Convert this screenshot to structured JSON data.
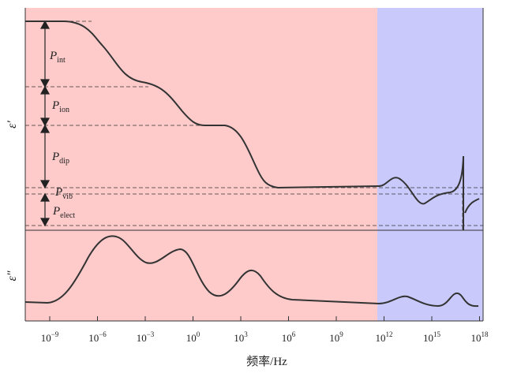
{
  "colors": {
    "low_freq_region": "#fecaca",
    "high_freq_region": "#c9c9fb",
    "curve": "#333333",
    "dashed": "#333333"
  },
  "upper_panel": {
    "y_label": "ε",
    "y_label_prime": "′",
    "polarizations": [
      {
        "main": "P",
        "sub": "int"
      },
      {
        "main": "P",
        "sub": "ion"
      },
      {
        "main": "P",
        "sub": "dip"
      },
      {
        "main": "P",
        "sub": "vib"
      },
      {
        "main": "P",
        "sub": "elect"
      }
    ]
  },
  "lower_panel": {
    "y_label": "ε",
    "y_label_prime": "″"
  },
  "x_axis": {
    "title": "频率/Hz",
    "ticks": [
      {
        "base": "10",
        "exp": "−9"
      },
      {
        "base": "10",
        "exp": "−6"
      },
      {
        "base": "10",
        "exp": "−3"
      },
      {
        "base": "10",
        "exp": "0"
      },
      {
        "base": "10",
        "exp": "3"
      },
      {
        "base": "10",
        "exp": "6"
      },
      {
        "base": "10",
        "exp": "9"
      },
      {
        "base": "10",
        "exp": "12"
      },
      {
        "base": "10",
        "exp": "15"
      },
      {
        "base": "10",
        "exp": "18"
      }
    ]
  }
}
